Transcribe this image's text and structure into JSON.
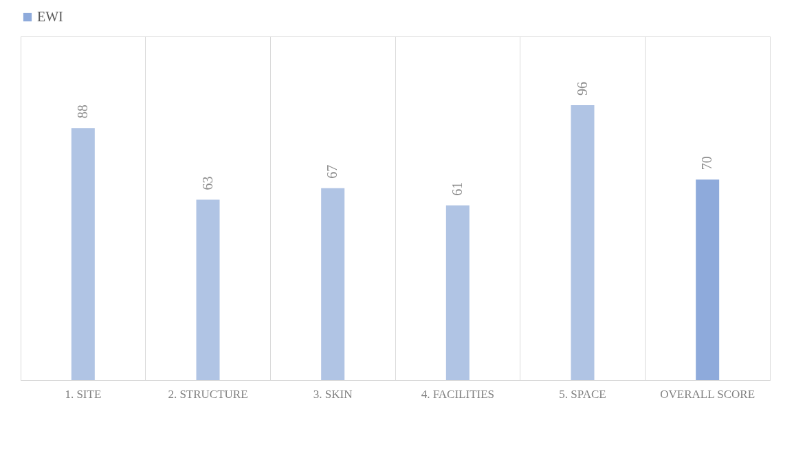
{
  "chart_data": {
    "type": "bar",
    "categories": [
      "1. SITE",
      "2. STRUCTURE",
      "3. SKIN",
      "4. FACILITIES",
      "5. SPACE",
      "OVERALL SCORE"
    ],
    "series": [
      {
        "name": "EWI",
        "color": "#8eaadb",
        "colors": [
          "#b0c4e4",
          "#b0c4e4",
          "#b0c4e4",
          "#b0c4e4",
          "#b0c4e4",
          "#8eaadb"
        ],
        "values": [
          88,
          63,
          67,
          61,
          96,
          70
        ]
      }
    ],
    "data_labels": true,
    "legend": "top",
    "grid": "x"
  }
}
